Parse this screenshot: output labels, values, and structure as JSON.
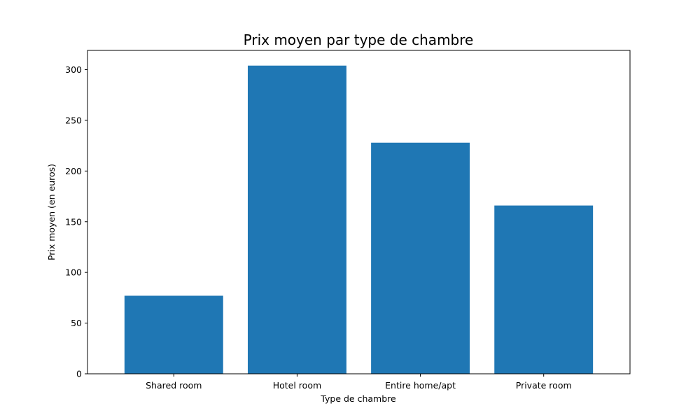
{
  "chart_data": {
    "type": "bar",
    "title": "Prix moyen par type de chambre",
    "xlabel": "Type de chambre",
    "ylabel": "Prix moyen (en euros)",
    "categories": [
      "Shared room",
      "Hotel room",
      "Entire home/apt",
      "Private room"
    ],
    "values": [
      77,
      304,
      228,
      166
    ],
    "ylim": [
      0,
      319
    ],
    "yticks": [
      0,
      50,
      100,
      150,
      200,
      250,
      300
    ],
    "grid": false,
    "bar_color": "#1f77b4"
  }
}
